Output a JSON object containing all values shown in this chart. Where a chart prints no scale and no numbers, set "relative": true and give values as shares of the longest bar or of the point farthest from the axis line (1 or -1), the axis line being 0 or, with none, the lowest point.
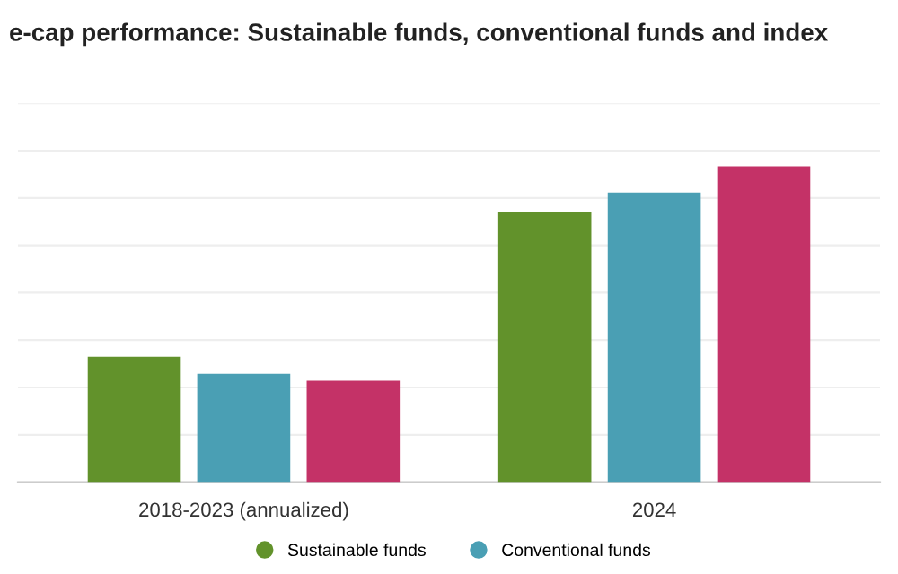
{
  "chart_data": {
    "type": "bar",
    "title": "e-cap performance: Sustainable funds, conventional funds and index",
    "categories": [
      "2018-2023 (annualized)",
      "2024"
    ],
    "relative": true,
    "grid": "y",
    "legend": "bottom",
    "series": [
      {
        "name": "Sustainable funds",
        "color": "#62922b",
        "values": [
          0.397,
          0.857
        ]
      },
      {
        "name": "Conventional funds",
        "color": "#4a9fb4",
        "values": [
          0.343,
          0.917
        ]
      },
      {
        "color": "#c43267",
        "values": [
          0.321,
          1.0
        ]
      }
    ]
  }
}
